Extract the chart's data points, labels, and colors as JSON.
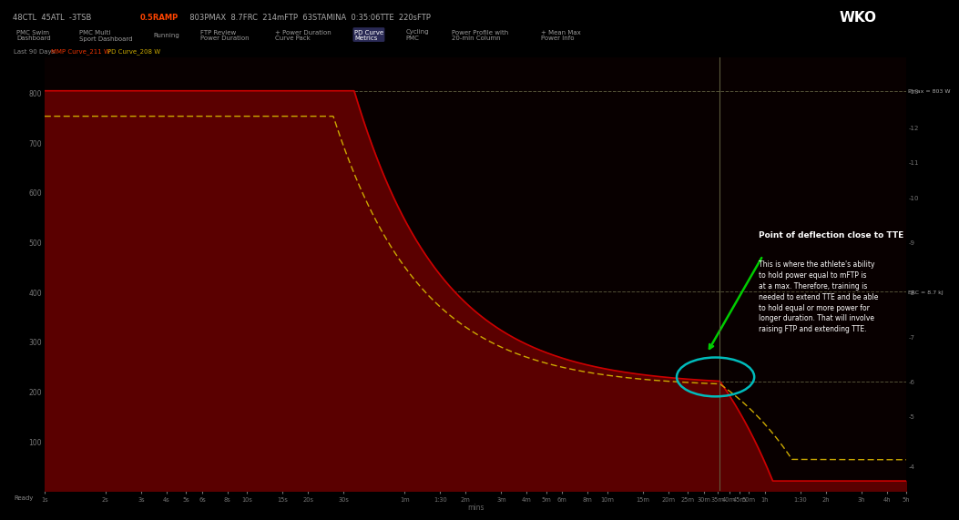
{
  "bg_color": "#000000",
  "chart_bg_left": "#080000",
  "chart_bg_right": "#000000",
  "mmp_line_color": "#cc0000",
  "mmp_fill_color": "#5a0000",
  "pd_color": "#ccaa00",
  "frc_line_y": 400,
  "ftp_line_y": 220,
  "pmax_line_y": 803,
  "tte_seconds": 2160,
  "y_max": 870,
  "y_min": 0,
  "x_min_s": 1,
  "x_max_s": 18000,
  "circle_color": "#00bbbb",
  "arrow_color": "#00cc00",
  "annotation_title": "Point of deflection close to TTE",
  "annotation_body": "This is where the athlete's ability\nto hold power equal to mFTP is\nat a max. Therefore, training is\nneeded to extend TTE and be able\nto hold equal or more power for\nlonger duration. That will involve\nraising FTP and extending TTE.",
  "pmax_label": "Pmax = 803 W",
  "frc_label": "FRC = 8.7 kJ",
  "legend_mmp": "MMP Curve_211 W",
  "legend_pd": "PD Curve_208 W",
  "legend_period": "Last 90 Days",
  "header_left_color": "#aaaaaa",
  "header_ramp_color": "#ff4400",
  "nav_bg": "#111111",
  "nav_active_bg": "#333355",
  "status_bar_color": "#222222",
  "right_axis_labels": [
    "-13",
    "-12",
    "-11",
    "-10",
    "-9",
    "-8",
    "-7",
    "-6",
    "-5",
    "-4"
  ],
  "right_axis_watts": [
    803,
    730,
    660,
    590,
    500,
    400,
    310,
    220,
    150,
    50
  ],
  "y_ticks": [
    100,
    200,
    300,
    400,
    500,
    600,
    700,
    800
  ],
  "x_tick_pos": [
    1,
    2,
    3,
    4,
    5,
    6,
    8,
    10,
    15,
    20,
    30,
    60,
    90,
    120,
    180,
    240,
    300,
    360,
    480,
    600,
    900,
    1200,
    1500,
    1800,
    2100,
    2400,
    2700,
    3000,
    3600,
    5400,
    7200,
    10800,
    14400,
    18000
  ],
  "x_tick_labels": [
    "1s",
    "2s",
    "3s",
    "4s",
    "5s",
    "6s",
    "8s",
    "10s",
    "15s",
    "20s",
    "30s",
    "1m",
    "1:30",
    "2m",
    "3m",
    "4m",
    "5m",
    "6m",
    "8m",
    "10m",
    "15m",
    "20m",
    "25m",
    "30m",
    "35m",
    "40m",
    "45m",
    "50m",
    "1h",
    "1:30",
    "2h",
    "3h",
    "4h",
    "5h"
  ]
}
